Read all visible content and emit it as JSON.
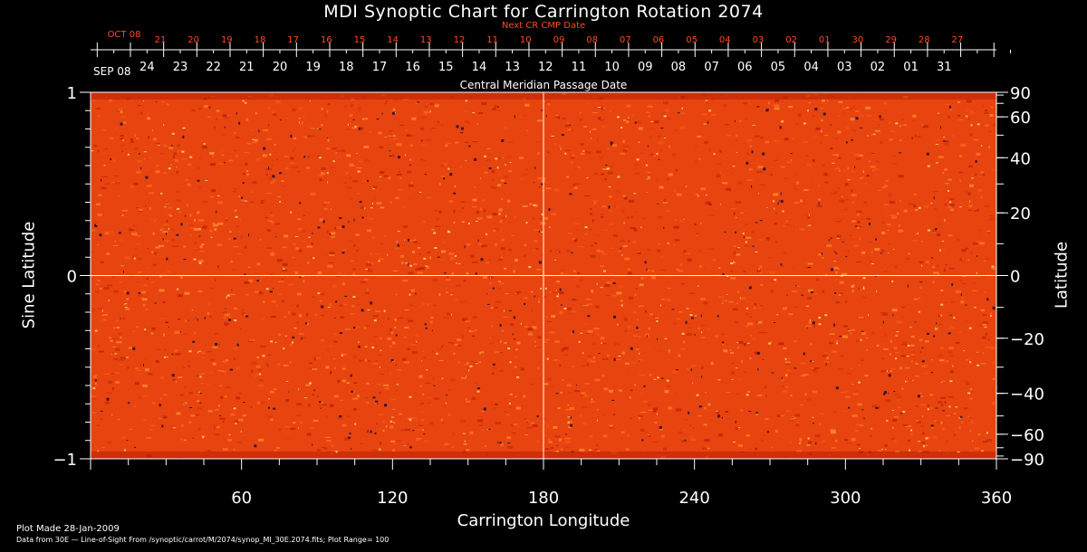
{
  "chart_data": {
    "type": "heatmap",
    "title": "MDI Synoptic Chart for Carrington Rotation 2074",
    "xlabel": "Carrington Longitude",
    "ylabel": "Sine Latitude",
    "ylabel_right": "Latitude",
    "xlim": [
      0,
      360
    ],
    "ylim": [
      -1,
      1
    ],
    "x_ticks": [
      60,
      120,
      180,
      240,
      300,
      360
    ],
    "y_ticks_left": [
      {
        "value": 1,
        "label": "1"
      },
      {
        "value": 0,
        "label": "0"
      },
      {
        "value": -1,
        "label": "−1"
      }
    ],
    "y_ticks_right": [
      90,
      60,
      40,
      20,
      0,
      -20,
      -40,
      -60,
      -90
    ],
    "y_ticks_right_labels": [
      "90",
      "60",
      "40",
      "20",
      "0",
      "−20",
      "−40",
      "−60",
      "−90"
    ],
    "crosshair": {
      "longitude": 180,
      "sine_latitude": 0
    },
    "top_axis": {
      "label": "Central Meridian Passage Date",
      "month_label": "SEP 08",
      "dates": [
        "24",
        "23",
        "22",
        "21",
        "20",
        "19",
        "18",
        "17",
        "16",
        "15",
        "14",
        "13",
        "12",
        "11",
        "10",
        "09",
        "08",
        "07",
        "06",
        "05",
        "04",
        "03",
        "02",
        "01",
        "31"
      ]
    },
    "next_axis": {
      "label": "Next CR CMP Date",
      "month_label": "OCT 08",
      "dates": [
        "21",
        "20",
        "19",
        "18",
        "17",
        "16",
        "15",
        "14",
        "13",
        "12",
        "11",
        "10",
        "09",
        "08",
        "07",
        "06",
        "05",
        "04",
        "03",
        "02",
        "01",
        "30",
        "29",
        "28",
        "27"
      ]
    },
    "colors": {
      "background": "#000000",
      "field_base": "#e8440f",
      "positive": "#ffe07a",
      "negative": "#1a0a3a",
      "next_axis": "#ff4a1a",
      "axis": "#ffffff"
    }
  },
  "footer": {
    "plot_made": "Plot Made 28-Jan-2009",
    "data_source": "Data from 30E — Line-of-Sight From /synoptic/carrot/M/2074/synop_Ml_30E.2074.fits; Plot Range=  100"
  }
}
